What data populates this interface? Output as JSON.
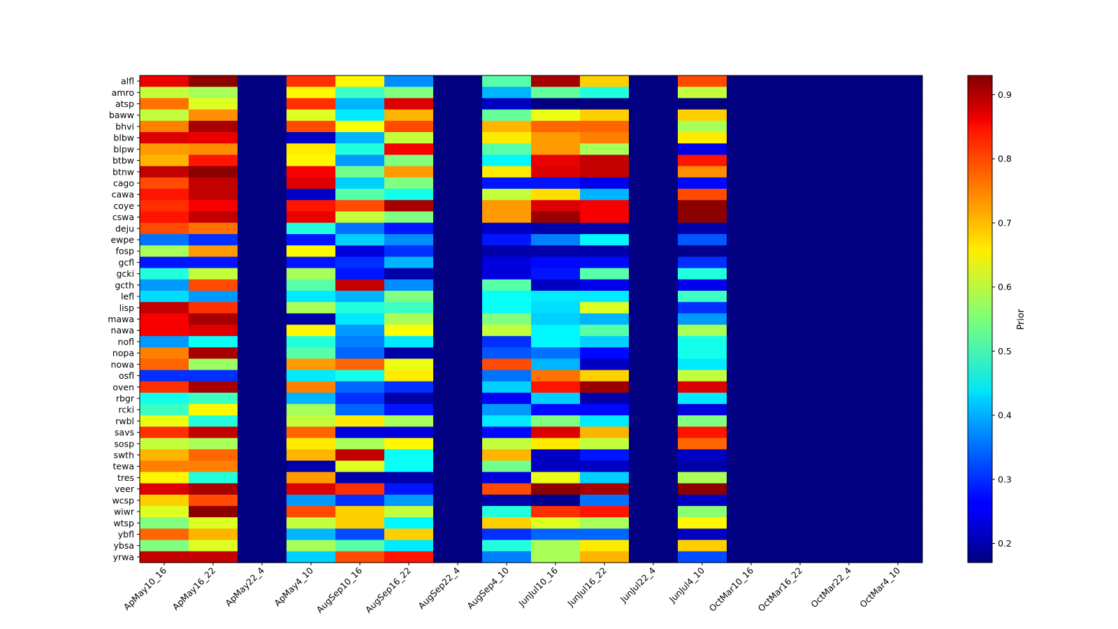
{
  "chart_data": {
    "type": "heatmap",
    "title": "",
    "xlabel": "",
    "ylabel": "",
    "colorbar_label": "Prior",
    "colormap": "jet",
    "vmin": 0.17,
    "vmax": 0.93,
    "colorbar_ticks": [
      "0.2",
      "0.3",
      "0.4",
      "0.5",
      "0.6",
      "0.7",
      "0.8",
      "0.9"
    ],
    "x_categories": [
      "ApMay10_16",
      "ApMay16_22",
      "ApMay22_4",
      "ApMay4_10",
      "AugSep10_16",
      "AugSep16_22",
      "AugSep22_4",
      "AugSep4_10",
      "JunJul10_16",
      "JunJul16_22",
      "JunJul22_4",
      "JunJul4_10",
      "OctMar10_16",
      "OctMar16_22",
      "OctMar22_4",
      "OctMar4_10"
    ],
    "y_categories": [
      "alfl",
      "amro",
      "atsp",
      "baww",
      "bhvi",
      "blbw",
      "blpw",
      "btbw",
      "btnw",
      "cago",
      "cawa",
      "coye",
      "cswa",
      "deju",
      "ewpe",
      "fosp",
      "gcfl",
      "gcki",
      "gcth",
      "lefl",
      "lisp",
      "mawa",
      "nawa",
      "nofl",
      "nopa",
      "nowa",
      "osfl",
      "oven",
      "rbgr",
      "rcki",
      "rwbl",
      "savs",
      "sosp",
      "swth",
      "tewa",
      "tres",
      "veer",
      "wcsp",
      "wiwr",
      "wtsp",
      "ybfl",
      "ybsa",
      "yrwa"
    ],
    "values": [
      [
        0.85,
        0.92,
        0.17,
        0.8,
        0.65,
        0.37,
        0.17,
        0.52,
        0.9,
        0.68,
        0.17,
        0.78,
        0.17,
        0.17,
        0.17,
        0.17
      ],
      [
        0.6,
        0.58,
        0.17,
        0.65,
        0.5,
        0.55,
        0.17,
        0.4,
        0.53,
        0.48,
        0.17,
        0.6,
        0.17,
        0.17,
        0.17,
        0.17
      ],
      [
        0.75,
        0.62,
        0.17,
        0.8,
        0.4,
        0.86,
        0.17,
        0.22,
        0.17,
        0.17,
        0.17,
        0.17,
        0.17,
        0.17,
        0.17,
        0.17
      ],
      [
        0.6,
        0.73,
        0.17,
        0.62,
        0.44,
        0.7,
        0.17,
        0.53,
        0.63,
        0.68,
        0.17,
        0.68,
        0.17,
        0.17,
        0.17,
        0.17
      ],
      [
        0.74,
        0.9,
        0.17,
        0.78,
        0.64,
        0.78,
        0.17,
        0.7,
        0.76,
        0.76,
        0.17,
        0.58,
        0.17,
        0.17,
        0.17,
        0.17
      ],
      [
        0.86,
        0.85,
        0.17,
        0.22,
        0.4,
        0.6,
        0.17,
        0.66,
        0.72,
        0.74,
        0.17,
        0.66,
        0.17,
        0.17,
        0.17,
        0.17
      ],
      [
        0.72,
        0.73,
        0.17,
        0.66,
        0.48,
        0.84,
        0.17,
        0.52,
        0.72,
        0.58,
        0.17,
        0.25,
        0.17,
        0.17,
        0.17,
        0.17
      ],
      [
        0.7,
        0.82,
        0.17,
        0.65,
        0.38,
        0.55,
        0.17,
        0.45,
        0.85,
        0.88,
        0.17,
        0.82,
        0.17,
        0.17,
        0.17,
        0.17
      ],
      [
        0.88,
        0.92,
        0.17,
        0.84,
        0.54,
        0.72,
        0.17,
        0.66,
        0.86,
        0.88,
        0.17,
        0.73,
        0.17,
        0.17,
        0.17,
        0.17
      ],
      [
        0.78,
        0.88,
        0.17,
        0.86,
        0.42,
        0.55,
        0.17,
        0.28,
        0.28,
        0.25,
        0.17,
        0.27,
        0.17,
        0.17,
        0.17,
        0.17
      ],
      [
        0.82,
        0.88,
        0.17,
        0.22,
        0.52,
        0.47,
        0.17,
        0.6,
        0.67,
        0.4,
        0.17,
        0.78,
        0.17,
        0.17,
        0.17,
        0.17
      ],
      [
        0.8,
        0.84,
        0.17,
        0.82,
        0.78,
        0.9,
        0.17,
        0.72,
        0.86,
        0.84,
        0.17,
        0.92,
        0.17,
        0.17,
        0.17,
        0.17
      ],
      [
        0.82,
        0.88,
        0.17,
        0.85,
        0.6,
        0.55,
        0.17,
        0.72,
        0.91,
        0.84,
        0.17,
        0.92,
        0.17,
        0.17,
        0.17,
        0.17
      ],
      [
        0.78,
        0.75,
        0.17,
        0.48,
        0.35,
        0.28,
        0.17,
        0.22,
        0.2,
        0.2,
        0.17,
        0.2,
        0.17,
        0.17,
        0.17,
        0.17
      ],
      [
        0.35,
        0.3,
        0.17,
        0.28,
        0.42,
        0.37,
        0.17,
        0.28,
        0.36,
        0.45,
        0.17,
        0.33,
        0.17,
        0.17,
        0.17,
        0.17
      ],
      [
        0.58,
        0.72,
        0.17,
        0.65,
        0.24,
        0.3,
        0.17,
        0.2,
        0.2,
        0.2,
        0.17,
        0.18,
        0.17,
        0.17,
        0.17,
        0.17
      ],
      [
        0.28,
        0.28,
        0.17,
        0.28,
        0.3,
        0.4,
        0.17,
        0.24,
        0.27,
        0.27,
        0.17,
        0.3,
        0.17,
        0.17,
        0.17,
        0.17
      ],
      [
        0.48,
        0.6,
        0.17,
        0.58,
        0.28,
        0.2,
        0.17,
        0.24,
        0.28,
        0.52,
        0.17,
        0.48,
        0.17,
        0.17,
        0.17,
        0.17
      ],
      [
        0.38,
        0.78,
        0.17,
        0.52,
        0.88,
        0.37,
        0.17,
        0.52,
        0.22,
        0.25,
        0.17,
        0.25,
        0.17,
        0.17,
        0.17,
        0.17
      ],
      [
        0.43,
        0.38,
        0.17,
        0.44,
        0.4,
        0.55,
        0.17,
        0.46,
        0.44,
        0.44,
        0.17,
        0.5,
        0.17,
        0.17,
        0.17,
        0.17
      ],
      [
        0.88,
        0.8,
        0.17,
        0.58,
        0.48,
        0.5,
        0.17,
        0.46,
        0.43,
        0.62,
        0.17,
        0.3,
        0.17,
        0.17,
        0.17,
        0.17
      ],
      [
        0.84,
        0.9,
        0.17,
        0.2,
        0.44,
        0.58,
        0.17,
        0.55,
        0.42,
        0.4,
        0.17,
        0.38,
        0.17,
        0.17,
        0.17,
        0.17
      ],
      [
        0.84,
        0.86,
        0.17,
        0.65,
        0.38,
        0.64,
        0.17,
        0.6,
        0.45,
        0.52,
        0.17,
        0.58,
        0.17,
        0.17,
        0.17,
        0.17
      ],
      [
        0.38,
        0.46,
        0.17,
        0.48,
        0.36,
        0.44,
        0.17,
        0.3,
        0.45,
        0.42,
        0.17,
        0.47,
        0.17,
        0.17,
        0.17,
        0.17
      ],
      [
        0.74,
        0.9,
        0.17,
        0.52,
        0.34,
        0.2,
        0.17,
        0.33,
        0.35,
        0.27,
        0.17,
        0.47,
        0.17,
        0.17,
        0.17,
        0.17
      ],
      [
        0.76,
        0.57,
        0.17,
        0.72,
        0.76,
        0.63,
        0.17,
        0.78,
        0.4,
        0.22,
        0.17,
        0.44,
        0.17,
        0.17,
        0.17,
        0.17
      ],
      [
        0.3,
        0.3,
        0.17,
        0.44,
        0.47,
        0.66,
        0.17,
        0.35,
        0.75,
        0.68,
        0.17,
        0.6,
        0.17,
        0.17,
        0.17,
        0.17
      ],
      [
        0.8,
        0.9,
        0.17,
        0.74,
        0.34,
        0.3,
        0.17,
        0.42,
        0.82,
        0.91,
        0.17,
        0.86,
        0.17,
        0.17,
        0.17,
        0.17
      ],
      [
        0.47,
        0.5,
        0.17,
        0.4,
        0.3,
        0.2,
        0.17,
        0.26,
        0.42,
        0.2,
        0.17,
        0.44,
        0.17,
        0.17,
        0.17,
        0.17
      ],
      [
        0.5,
        0.65,
        0.17,
        0.58,
        0.34,
        0.28,
        0.17,
        0.38,
        0.27,
        0.27,
        0.17,
        0.24,
        0.17,
        0.17,
        0.17,
        0.17
      ],
      [
        0.63,
        0.48,
        0.17,
        0.6,
        0.66,
        0.58,
        0.17,
        0.44,
        0.55,
        0.44,
        0.17,
        0.55,
        0.17,
        0.17,
        0.17,
        0.17
      ],
      [
        0.8,
        0.88,
        0.17,
        0.76,
        0.24,
        0.24,
        0.17,
        0.27,
        0.86,
        0.7,
        0.17,
        0.82,
        0.17,
        0.17,
        0.17,
        0.17
      ],
      [
        0.6,
        0.58,
        0.17,
        0.66,
        0.58,
        0.65,
        0.17,
        0.6,
        0.66,
        0.6,
        0.17,
        0.76,
        0.17,
        0.17,
        0.17,
        0.17
      ],
      [
        0.7,
        0.76,
        0.17,
        0.7,
        0.88,
        0.46,
        0.17,
        0.7,
        0.22,
        0.28,
        0.17,
        0.22,
        0.17,
        0.17,
        0.17,
        0.17
      ],
      [
        0.74,
        0.74,
        0.17,
        0.2,
        0.62,
        0.46,
        0.17,
        0.54,
        0.22,
        0.22,
        0.17,
        0.2,
        0.17,
        0.17,
        0.17,
        0.17
      ],
      [
        0.65,
        0.48,
        0.17,
        0.72,
        0.2,
        0.2,
        0.17,
        0.24,
        0.63,
        0.42,
        0.17,
        0.58,
        0.17,
        0.17,
        0.17,
        0.17
      ],
      [
        0.86,
        0.9,
        0.17,
        0.86,
        0.8,
        0.28,
        0.17,
        0.78,
        0.92,
        0.9,
        0.17,
        0.92,
        0.17,
        0.17,
        0.17,
        0.17
      ],
      [
        0.68,
        0.78,
        0.17,
        0.38,
        0.3,
        0.38,
        0.17,
        0.2,
        0.18,
        0.35,
        0.17,
        0.22,
        0.17,
        0.17,
        0.17,
        0.17
      ],
      [
        0.62,
        0.92,
        0.17,
        0.78,
        0.68,
        0.6,
        0.17,
        0.48,
        0.8,
        0.82,
        0.17,
        0.56,
        0.17,
        0.17,
        0.17,
        0.17
      ],
      [
        0.55,
        0.62,
        0.17,
        0.6,
        0.68,
        0.45,
        0.17,
        0.68,
        0.62,
        0.58,
        0.17,
        0.65,
        0.17,
        0.17,
        0.17,
        0.17
      ],
      [
        0.76,
        0.7,
        0.17,
        0.4,
        0.32,
        0.68,
        0.17,
        0.3,
        0.34,
        0.34,
        0.17,
        0.22,
        0.17,
        0.17,
        0.17,
        0.17
      ],
      [
        0.55,
        0.62,
        0.17,
        0.58,
        0.52,
        0.44,
        0.17,
        0.48,
        0.58,
        0.66,
        0.17,
        0.68,
        0.17,
        0.17,
        0.17,
        0.17
      ],
      [
        0.88,
        0.88,
        0.17,
        0.42,
        0.78,
        0.82,
        0.17,
        0.36,
        0.58,
        0.7,
        0.17,
        0.32,
        0.17,
        0.17,
        0.17,
        0.17
      ]
    ]
  }
}
